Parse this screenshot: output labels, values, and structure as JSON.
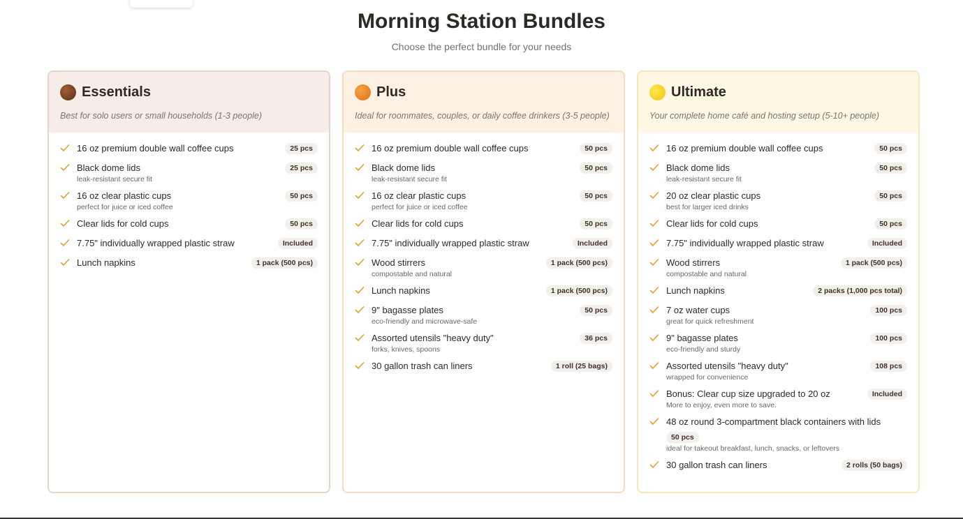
{
  "header": {
    "title": "Morning Station Bundles",
    "subtitle": "Choose the perfect bundle for your needs"
  },
  "bundles": [
    {
      "name": "Essentials",
      "description": "Best for solo users or small households (1-3 people)",
      "items": [
        {
          "name": "16 oz premium double wall coffee cups",
          "qty": "25 pcs"
        },
        {
          "name": "Black dome lids",
          "qty": "25 pcs",
          "note": "leak-resistant secure fit"
        },
        {
          "name": "16 oz clear plastic cups",
          "qty": "50 pcs",
          "note": "perfect for juice or iced coffee"
        },
        {
          "name": "Clear lids for cold cups",
          "qty": "50 pcs"
        },
        {
          "name": "7.75\" individually wrapped plastic straw",
          "qty": "Included"
        },
        {
          "name": "Lunch napkins",
          "qty": "1 pack (500 pcs)"
        }
      ]
    },
    {
      "name": "Plus",
      "description": "Ideal for roommates, couples, or daily coffee drinkers (3-5 people)",
      "items": [
        {
          "name": "16 oz premium double wall coffee cups",
          "qty": "50 pcs"
        },
        {
          "name": "Black dome lids",
          "qty": "50 pcs",
          "note": "leak-resistant secure fit"
        },
        {
          "name": "16 oz clear plastic cups",
          "qty": "50 pcs",
          "note": "perfect for juice or iced coffee"
        },
        {
          "name": "Clear lids for cold cups",
          "qty": "50 pcs"
        },
        {
          "name": "7.75\" individually wrapped plastic straw",
          "qty": "Included"
        },
        {
          "name": "Wood stirrers",
          "qty": "1 pack (500 pcs)",
          "note": "compostable and natural"
        },
        {
          "name": "Lunch napkins",
          "qty": "1 pack (500 pcs)"
        },
        {
          "name": "9\" bagasse plates",
          "qty": "50 pcs",
          "note": "eco-friendly and microwave-safe"
        },
        {
          "name": "Assorted utensils \"heavy duty\"",
          "qty": "36 pcs",
          "note": "forks, knives, spoons"
        },
        {
          "name": "30 gallon trash can liners",
          "qty": "1 roll (25 bags)"
        }
      ]
    },
    {
      "name": "Ultimate",
      "description": "Your complete home café and hosting setup (5-10+ people)",
      "items": [
        {
          "name": "16 oz premium double wall coffee cups",
          "qty": "50 pcs"
        },
        {
          "name": "Black dome lids",
          "qty": "50 pcs",
          "note": "leak-resistant secure fit"
        },
        {
          "name": "20 oz clear plastic cups",
          "qty": "50 pcs",
          "note": "best for larger iced drinks"
        },
        {
          "name": "Clear lids for cold cups",
          "qty": "50 pcs"
        },
        {
          "name": "7.75\" individually wrapped plastic straw",
          "qty": "Included"
        },
        {
          "name": "Wood stirrers",
          "qty": "1 pack (500 pcs)",
          "note": "compostable and natural"
        },
        {
          "name": "Lunch napkins",
          "qty": "2 packs (1,000 pcs total)"
        },
        {
          "name": "7 oz water cups",
          "qty": "100 pcs",
          "note": "great for quick refreshment"
        },
        {
          "name": "9\" bagasse plates",
          "qty": "100 pcs",
          "note": "eco-friendly and sturdy"
        },
        {
          "name": "Assorted utensils \"heavy duty\"",
          "qty": "108 pcs",
          "note": "wrapped for convenience"
        },
        {
          "name": "Bonus: Clear cup size upgraded to 20 oz",
          "qty": "Included",
          "note": "More to enjoy, even more to save."
        },
        {
          "name": "48 oz round 3-compartment black containers with lids",
          "qty": "50 pcs",
          "note": "ideal for takeout breakfast, lunch, snacks, or leftovers"
        },
        {
          "name": "30 gallon trash can liners",
          "qty": "2 rolls (50 bags)"
        }
      ]
    }
  ]
}
